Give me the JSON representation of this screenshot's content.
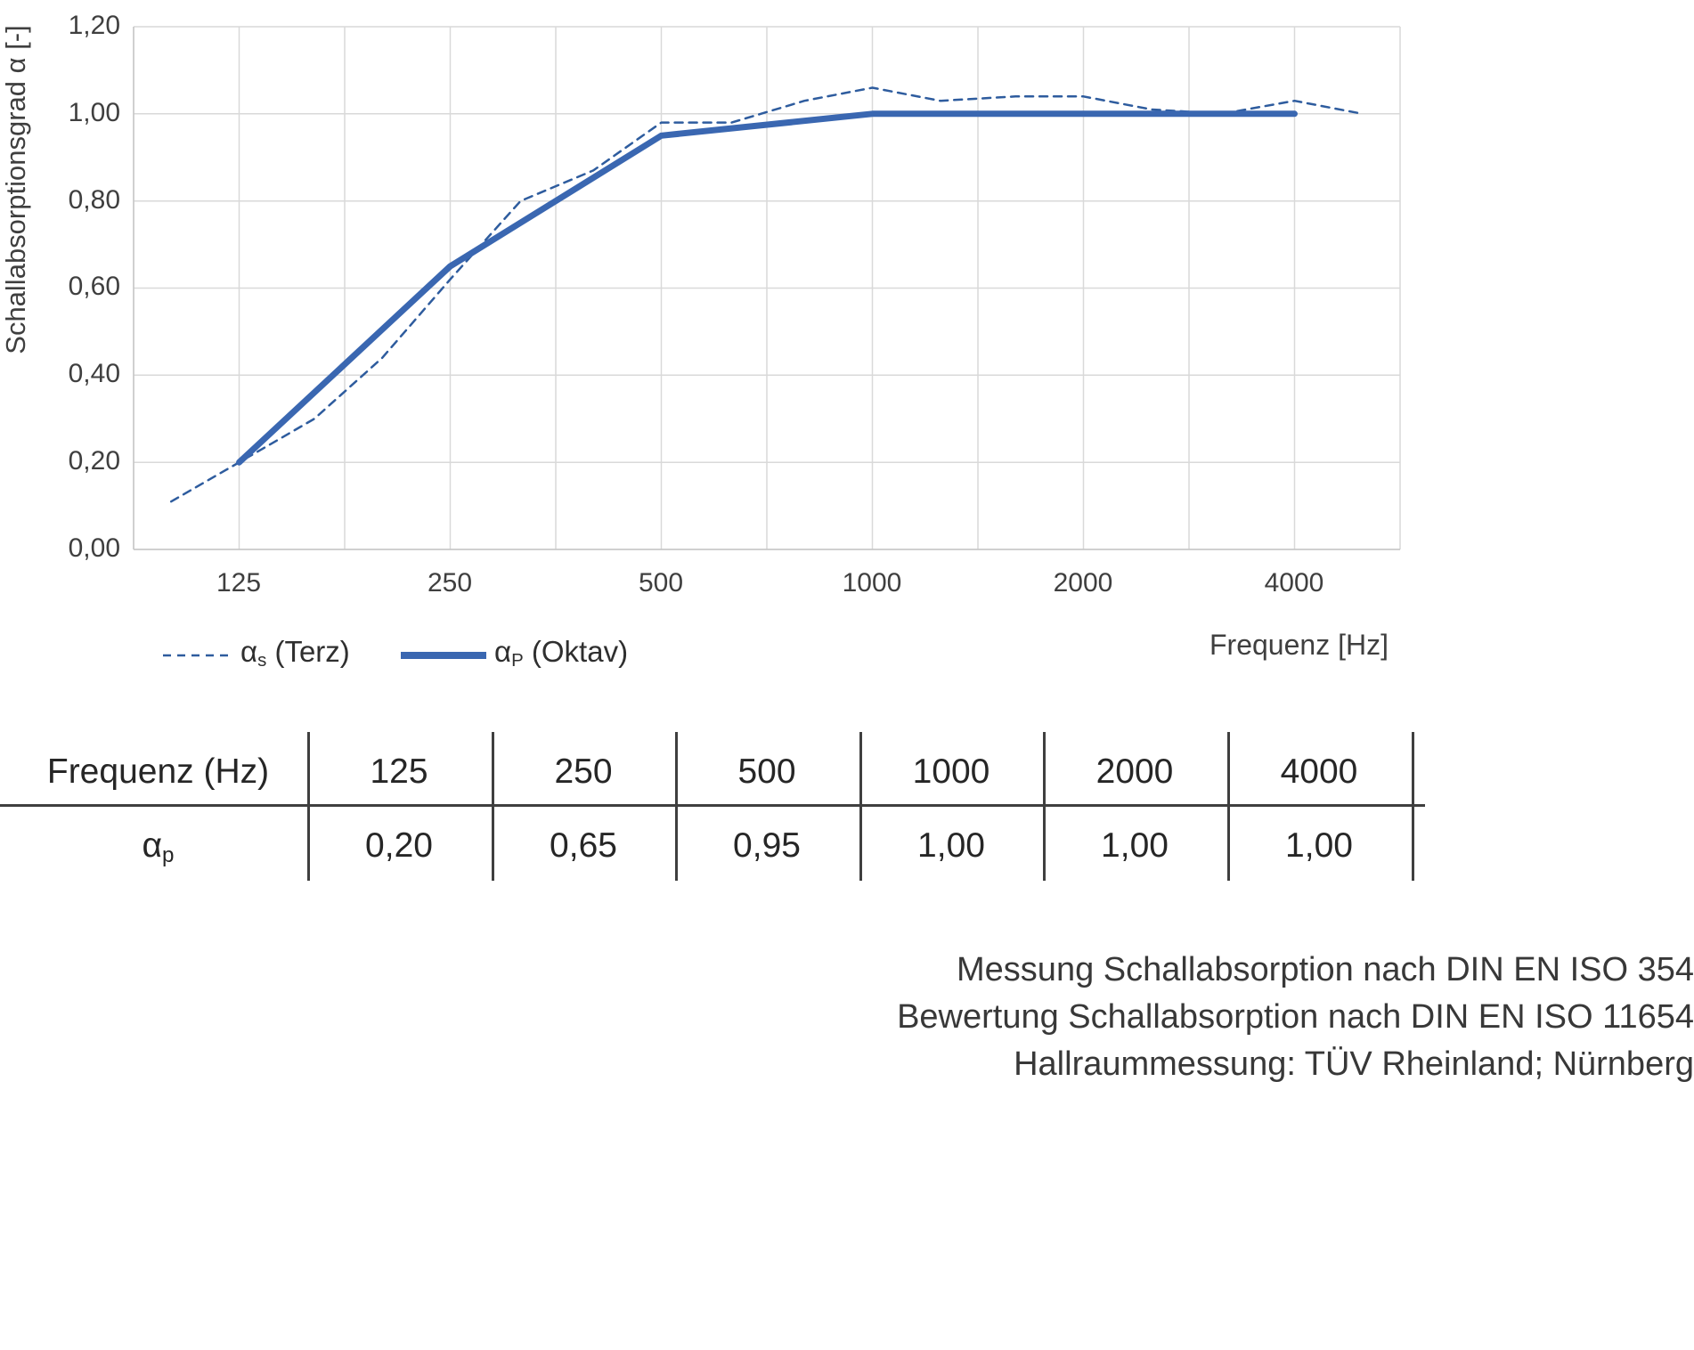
{
  "chart_data": {
    "type": "line",
    "title": "",
    "xlabel": "Frequenz [Hz]",
    "ylabel": "Schallabsorptionsgrad α [-]",
    "x_scale": "log2",
    "x_ticks": [
      "125",
      "250",
      "500",
      "1000",
      "2000",
      "4000"
    ],
    "y_ticks": [
      "0,00",
      "0,20",
      "0,40",
      "0,60",
      "0,80",
      "1,00",
      "1,20"
    ],
    "ylim": [
      0,
      1.2
    ],
    "grid": "on",
    "legend_position": "bottom",
    "series": [
      {
        "name": "αs (Terz)",
        "style": "dashed",
        "color": "#2e5c9e",
        "x": [
          100,
          125,
          160,
          200,
          250,
          315,
          400,
          500,
          630,
          800,
          1000,
          1250,
          1600,
          2000,
          2500,
          3150,
          4000,
          5000
        ],
        "values": [
          0.11,
          0.2,
          0.3,
          0.44,
          0.62,
          0.8,
          0.87,
          0.98,
          0.98,
          1.03,
          1.06,
          1.03,
          1.04,
          1.04,
          1.01,
          1.0,
          1.03,
          1.0
        ]
      },
      {
        "name": "αP (Oktav)",
        "style": "solid",
        "color": "#3a67b1",
        "x": [
          125,
          250,
          500,
          1000,
          2000,
          4000
        ],
        "values": [
          0.2,
          0.65,
          0.95,
          1.0,
          1.0,
          1.0
        ]
      }
    ]
  },
  "legend": {
    "terz": {
      "symbol": "α",
      "sub": "s",
      "rest": " (Terz)"
    },
    "oktav": {
      "symbol": "α",
      "sub": "P",
      "rest": " (Oktav)"
    }
  },
  "table": {
    "header": [
      "Frequenz (Hz)",
      "125",
      "250",
      "500",
      "1000",
      "2000",
      "4000"
    ],
    "row_label_symbol": "α",
    "row_label_sub": "p",
    "values": [
      "0,20",
      "0,65",
      "0,95",
      "1,00",
      "1,00",
      "1,00"
    ]
  },
  "footer": {
    "lines": [
      "Messung Schallabsorption nach DIN EN ISO 354",
      "Bewertung Schallabsorption nach DIN EN ISO 11654",
      "Hallraummessung: TÜV Rheinland; Nürnberg"
    ]
  }
}
